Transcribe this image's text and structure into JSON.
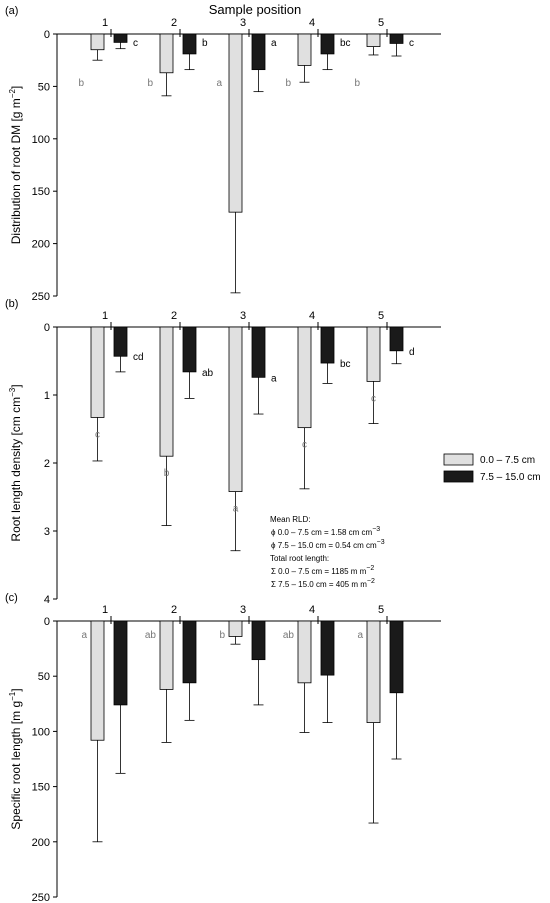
{
  "chart_data": {
    "type": "bar",
    "title": "Sample position",
    "categories": [
      "1",
      "2",
      "3",
      "4",
      "5"
    ],
    "legend": {
      "placement": "right",
      "entries": [
        {
          "label": "0.0 – 7.5 cm",
          "color": "#e0e0e0"
        },
        {
          "label": "7.5 – 15.0 cm",
          "color": "#1a1a1a"
        }
      ]
    },
    "annotation": {
      "lines": [
        "Mean RLD:",
        "ϕ 0.0 – 7.5 cm = 1.58 cm cm",
        "ϕ 7.5  – 15.0 cm = 0.54 cm cm",
        "Total root length:",
        "Σ 0.0 – 7.5 cm =  1185 m m",
        "Σ 7.5 – 15.0 cm = 405 m m"
      ],
      "superscripts": [
        "",
        "−3",
        "−3",
        "",
        "−2",
        "−2"
      ]
    },
    "panels": [
      {
        "label": "(a)",
        "ylabel": "Distribution of root DM [g m",
        "ylabel_sup": "−2",
        "ylabel_end": "]",
        "ylim": [
          0,
          250
        ],
        "y_inverted": true,
        "yticks": [
          0,
          50,
          100,
          150,
          200,
          250
        ],
        "series": [
          {
            "name": "0.0 – 7.5 cm",
            "values": [
              15,
              37,
              170,
              30,
              12
            ],
            "errors": [
              10,
              22,
              77,
              16,
              8
            ],
            "letters": [
              "b",
              "b",
              "a",
              "b",
              "b"
            ]
          },
          {
            "name": "7.5 – 15.0 cm",
            "values": [
              8,
              19,
              34,
              19,
              9
            ],
            "errors": [
              6,
              15,
              21,
              15,
              12
            ],
            "letters": [
              "c",
              "b",
              "a",
              "bc",
              "c"
            ]
          }
        ]
      },
      {
        "label": "(b)",
        "ylabel": "Root length density [cm cm",
        "ylabel_sup": "−3",
        "ylabel_end": "]",
        "ylim": [
          0,
          4
        ],
        "y_inverted": true,
        "yticks": [
          0,
          1,
          2,
          3,
          4
        ],
        "series": [
          {
            "name": "0.0 – 7.5 cm",
            "values": [
              1.33,
              1.9,
              2.42,
              1.48,
              0.8
            ],
            "errors": [
              0.64,
              1.02,
              0.87,
              0.9,
              0.62
            ],
            "letters": [
              "c",
              "b",
              "a",
              "c",
              "c"
            ]
          },
          {
            "name": "7.5 – 15.0 cm",
            "values": [
              0.43,
              0.66,
              0.74,
              0.53,
              0.35
            ],
            "errors": [
              0.23,
              0.39,
              0.54,
              0.3,
              0.19
            ],
            "letters": [
              "cd",
              "ab",
              "a",
              "bc",
              "d"
            ]
          }
        ]
      },
      {
        "label": "(c)",
        "ylabel": "Specific root length [m g",
        "ylabel_sup": "−1",
        "ylabel_end": "]",
        "ylim": [
          0,
          250
        ],
        "y_inverted": true,
        "yticks": [
          0,
          50,
          100,
          150,
          200,
          250
        ],
        "series": [
          {
            "name": "0.0 – 7.5 cm",
            "values": [
              108,
              62,
              14,
              56,
              92
            ],
            "errors": [
              92,
              48,
              7,
              45,
              91
            ],
            "letters": [
              "a",
              "ab",
              "b",
              "ab",
              "a"
            ]
          },
          {
            "name": "7.5 – 15.0 cm",
            "values": [
              76,
              56,
              35,
              49,
              65
            ],
            "errors": [
              62,
              34,
              41,
              43,
              60
            ],
            "letters": [
              "",
              "",
              "",
              "",
              ""
            ]
          }
        ]
      }
    ]
  }
}
